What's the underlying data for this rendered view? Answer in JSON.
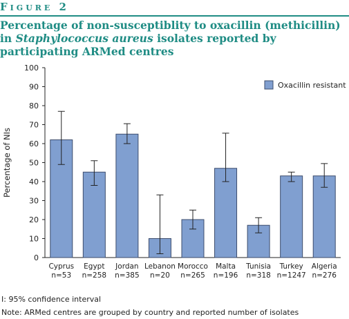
{
  "figure": {
    "label": "Figure 2",
    "title_part1": "Percentage of non-susceptiblity to oxacillin (methicillin) in ",
    "title_italic": "Staphylococcus aureus",
    "title_part2": " isolates reported by participating ARMed centres"
  },
  "notes": {
    "ci": "I: 95% confidence interval",
    "grouping": "Note: ARMed centres are grouped by country and reported number of isolates"
  },
  "colors": {
    "accent": "#1f8c84",
    "bar_fill": "#809fd0",
    "bar_stroke": "#3c4c6c"
  },
  "chart_data": {
    "type": "bar",
    "title": "",
    "xlabel": "",
    "ylabel": "Percentage of NIs",
    "ylim": [
      0,
      100
    ],
    "yticks": [
      0,
      10,
      20,
      30,
      40,
      50,
      60,
      70,
      80,
      90,
      100
    ],
    "grid": false,
    "legend_position": "top-right",
    "categories": [
      "Cyprus",
      "Egypt",
      "Jordan",
      "Lebanon",
      "Morocco",
      "Malta",
      "Tunisia",
      "Turkey",
      "Algeria"
    ],
    "counts": [
      "n=53",
      "n=258",
      "n=385",
      "n=20",
      "n=265",
      "n=196",
      "n=318",
      "n=1247",
      "n=276"
    ],
    "series": [
      {
        "name": "Oxacillin resistant",
        "values": [
          62,
          45,
          65,
          10,
          20,
          47,
          17,
          43,
          43
        ],
        "ci_low": [
          49,
          38,
          60,
          2,
          15,
          40,
          13,
          40,
          37
        ],
        "ci_high": [
          77,
          51,
          70.5,
          33,
          25,
          65.5,
          21,
          45,
          49.5
        ]
      }
    ]
  }
}
